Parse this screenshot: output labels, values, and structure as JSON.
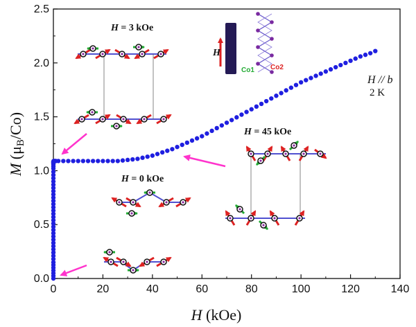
{
  "chart_data": {
    "type": "scatter",
    "title": "",
    "xlabel": "H (kOe)",
    "ylabel": "M (μB/Co)",
    "xlim": [
      0,
      140
    ],
    "ylim": [
      0,
      2.5
    ],
    "xticks": [
      0,
      20,
      40,
      60,
      80,
      100,
      120,
      140
    ],
    "yticks": [
      0.0,
      0.5,
      1.0,
      1.5,
      2.0,
      2.5
    ],
    "ytick_labels": [
      "0.0",
      "0.5",
      "1.0",
      "1.5",
      "2.0",
      "2.5"
    ],
    "grid": false,
    "marker_color": "#1f1fe0",
    "arrow_color": "#ff33cc",
    "series": [
      {
        "x": [
          0,
          0,
          0,
          0,
          0,
          0,
          0,
          0,
          0,
          0,
          0,
          0,
          0,
          0,
          0,
          0,
          0,
          0,
          0,
          0,
          0,
          0,
          0,
          0,
          0,
          0,
          0,
          0,
          0,
          0,
          0,
          0,
          0,
          0,
          0,
          0,
          0,
          0,
          0,
          0,
          0,
          0,
          0.1,
          0.2,
          0.4,
          0.6,
          0.8,
          1,
          2,
          4,
          6,
          8,
          10,
          12,
          14,
          16,
          18,
          20,
          22,
          24,
          26,
          28,
          30,
          32,
          34,
          36,
          38,
          40,
          42,
          44,
          46,
          48,
          50,
          52,
          54,
          56,
          58,
          60,
          62,
          64,
          66,
          68,
          70,
          72,
          74,
          76,
          78,
          80,
          82,
          84,
          86,
          88,
          90,
          92,
          94,
          96,
          98,
          100,
          102,
          104,
          106,
          108,
          110,
          112,
          114,
          116,
          118,
          120,
          122,
          124,
          126,
          128,
          130
        ],
        "y": [
          0.0,
          0.025,
          0.05,
          0.075,
          0.1,
          0.125,
          0.15,
          0.18,
          0.21,
          0.24,
          0.27,
          0.3,
          0.33,
          0.36,
          0.39,
          0.42,
          0.45,
          0.48,
          0.51,
          0.54,
          0.57,
          0.6,
          0.63,
          0.66,
          0.69,
          0.72,
          0.75,
          0.78,
          0.81,
          0.84,
          0.87,
          0.9,
          0.93,
          0.96,
          0.99,
          1.02,
          1.04,
          1.06,
          1.07,
          1.075,
          1.08,
          1.085,
          1.09,
          1.09,
          1.09,
          1.09,
          1.09,
          1.09,
          1.09,
          1.09,
          1.09,
          1.09,
          1.09,
          1.09,
          1.09,
          1.09,
          1.09,
          1.09,
          1.09,
          1.09,
          1.09,
          1.095,
          1.1,
          1.105,
          1.11,
          1.12,
          1.13,
          1.14,
          1.155,
          1.17,
          1.185,
          1.2,
          1.22,
          1.24,
          1.26,
          1.28,
          1.3,
          1.32,
          1.345,
          1.37,
          1.395,
          1.42,
          1.445,
          1.47,
          1.495,
          1.52,
          1.545,
          1.57,
          1.595,
          1.62,
          1.645,
          1.67,
          1.695,
          1.72,
          1.745,
          1.77,
          1.795,
          1.82,
          1.84,
          1.86,
          1.88,
          1.9,
          1.92,
          1.94,
          1.96,
          1.98,
          2.0,
          2.02,
          2.04,
          2.06,
          2.075,
          2.09,
          2.11
        ]
      }
    ],
    "annotations": {
      "field_direction": "H // b",
      "temperature": "2 K",
      "h3": "H = 3 kOe",
      "h0": "H = 0 kOe",
      "h45": "H = 45 kOe",
      "crystal_h": "H",
      "co1": "Co1",
      "co2": "Co2"
    }
  }
}
